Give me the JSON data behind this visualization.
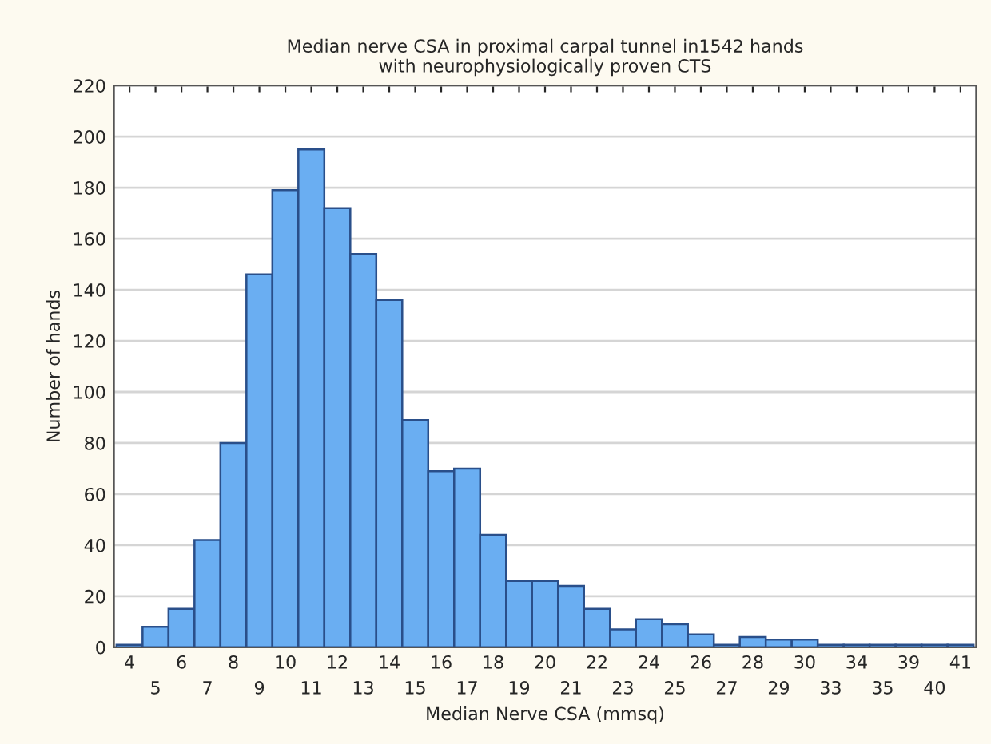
{
  "chart_data": {
    "type": "bar",
    "title": "Median nerve CSA in proximal carpal tunnel in1542 hands\nwith neurophysiologically proven CTS",
    "xlabel": "Median Nerve CSA (mmsq)",
    "ylabel": "Number of hands",
    "categories": [
      "4",
      "5",
      "6",
      "7",
      "8",
      "9",
      "10",
      "11",
      "12",
      "13",
      "14",
      "15",
      "16",
      "17",
      "18",
      "19",
      "20",
      "21",
      "22",
      "23",
      "24",
      "25",
      "26",
      "27",
      "28",
      "29",
      "30",
      "33",
      "34",
      "35",
      "39",
      "40",
      "41"
    ],
    "values": [
      1,
      8,
      15,
      42,
      80,
      146,
      179,
      195,
      172,
      154,
      136,
      89,
      69,
      70,
      44,
      26,
      26,
      24,
      15,
      7,
      11,
      9,
      5,
      1,
      4,
      3,
      3,
      1,
      1,
      1,
      1,
      1,
      1
    ],
    "color": "#6aaef2",
    "ylim": [
      0,
      220
    ],
    "yticks": [
      0,
      20,
      40,
      60,
      80,
      100,
      120,
      140,
      160,
      180,
      200,
      220
    ],
    "grid": "y",
    "legend": false
  }
}
